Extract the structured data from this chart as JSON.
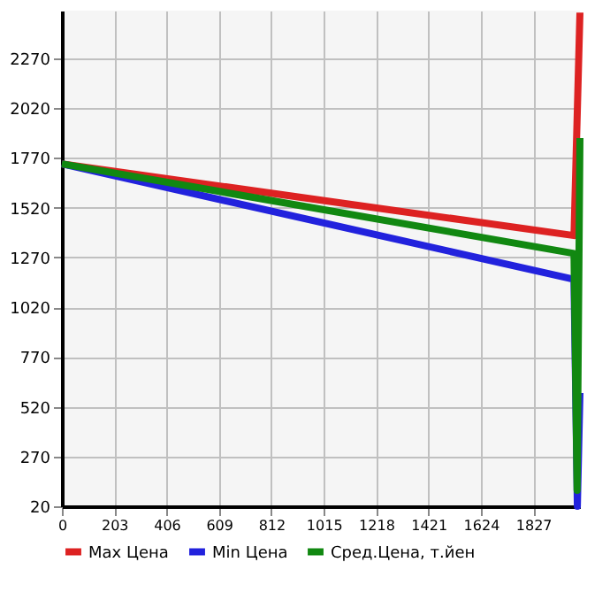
{
  "chart_data": {
    "type": "line",
    "series": [
      {
        "name": "Max Цена",
        "color": "#dd2222",
        "x": [
          0,
          1985,
          2008
        ],
        "values": [
          1740,
          1380,
          2500
        ]
      },
      {
        "name": "Min Цена",
        "color": "#2222dd",
        "x": [
          0,
          1985,
          1998,
          2008
        ],
        "values": [
          1740,
          1160,
          20,
          590
        ]
      },
      {
        "name": "Сред.Цена, т.йен",
        "color": "#118811",
        "x": [
          0,
          1985,
          1997,
          2008
        ],
        "values": [
          1740,
          1290,
          100,
          1870
        ]
      }
    ],
    "xlim": [
      0,
      2008
    ],
    "xticks": [
      0,
      203,
      406,
      609,
      812,
      1015,
      1218,
      1421,
      1624,
      1827
    ],
    "ylim": [
      20,
      2510
    ],
    "yticks": [
      20,
      270,
      520,
      770,
      1020,
      1270,
      1520,
      1770,
      2020,
      2270
    ],
    "grid": true,
    "legend": "bottom",
    "marker": "none",
    "line_style": "solid"
  }
}
